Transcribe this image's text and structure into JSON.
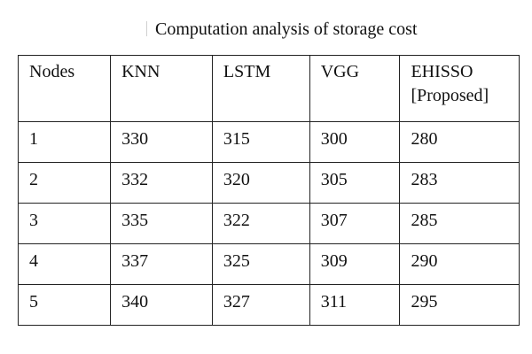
{
  "title": "Computation analysis of storage cost",
  "table": {
    "headers": [
      [
        "Nodes"
      ],
      [
        "KNN"
      ],
      [
        "LSTM"
      ],
      [
        "VGG"
      ],
      [
        "EHISSO",
        "[Proposed]"
      ]
    ],
    "rows": [
      [
        "1",
        "330",
        "315",
        "300",
        "280"
      ],
      [
        "2",
        "332",
        "320",
        "305",
        "283"
      ],
      [
        "3",
        "335",
        "322",
        "307",
        "285"
      ],
      [
        "4",
        "337",
        "325",
        "309",
        "290"
      ],
      [
        "5",
        "340",
        "327",
        "311",
        "295"
      ]
    ]
  }
}
